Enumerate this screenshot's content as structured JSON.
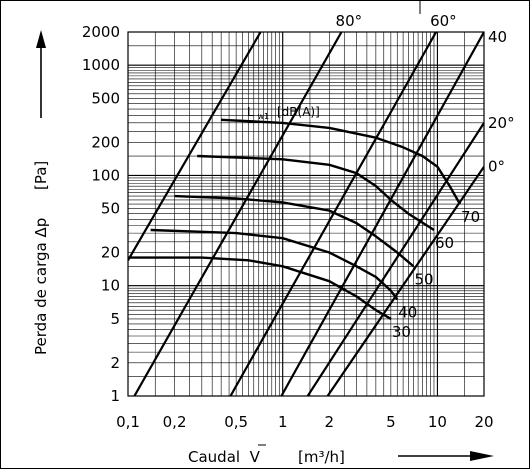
{
  "chart_data": {
    "type": "line",
    "xlabel": "Caudal  V",
    "xunit": "[m³/h]",
    "ylabel": "Perda de carga   Δp",
    "yunit": "[Pa]",
    "xscale": "log",
    "yscale": "log",
    "xlim": [
      0.1,
      20
    ],
    "ylim": [
      1,
      2000
    ],
    "x_ticks": [
      {
        "v": 0.1,
        "label": "0,1"
      },
      {
        "v": 0.2,
        "label": "0,2"
      },
      {
        "v": 0.5,
        "label": "0,5"
      },
      {
        "v": 1,
        "label": "1"
      },
      {
        "v": 2,
        "label": "2"
      },
      {
        "v": 5,
        "label": "5"
      },
      {
        "v": 10,
        "label": "10"
      },
      {
        "v": 20,
        "label": "20"
      }
    ],
    "y_ticks": [
      {
        "v": 1,
        "label": "1"
      },
      {
        "v": 2,
        "label": "2"
      },
      {
        "v": 5,
        "label": "5"
      },
      {
        "v": 10,
        "label": "10"
      },
      {
        "v": 20,
        "label": "20"
      },
      {
        "v": 50,
        "label": "50"
      },
      {
        "v": 100,
        "label": "100"
      },
      {
        "v": 200,
        "label": "200"
      },
      {
        "v": 500,
        "label": "500"
      },
      {
        "v": 1000,
        "label": "1000"
      },
      {
        "v": 2000,
        "label": "2000"
      }
    ],
    "valve_lines": [
      {
        "label": "80°",
        "points": [
          [
            0.11,
            1
          ],
          [
            2.4,
            2000
          ]
        ]
      },
      {
        "label": "60°",
        "points": [
          [
            0.46,
            1
          ],
          [
            9.8,
            2000
          ]
        ]
      },
      {
        "label": "40",
        "points": [
          [
            0.98,
            1
          ],
          [
            20,
            2000
          ]
        ]
      },
      {
        "label": "20°",
        "points": [
          [
            1.45,
            1
          ],
          [
            20,
            300
          ]
        ]
      },
      {
        "label": "0°",
        "points": [
          [
            1.95,
            1
          ],
          [
            20,
            120
          ]
        ]
      },
      {
        "label": "",
        "points": [
          [
            0.1,
            17
          ],
          [
            0.72,
            2000
          ]
        ]
      }
    ],
    "sound_curves": [
      {
        "label": "30",
        "points": [
          [
            0.1,
            18
          ],
          [
            0.3,
            18
          ],
          [
            0.6,
            17
          ],
          [
            1,
            15
          ],
          [
            2,
            11
          ],
          [
            3,
            8
          ],
          [
            4,
            6
          ],
          [
            5,
            5
          ]
        ]
      },
      {
        "label": "40",
        "points": [
          [
            0.14,
            32
          ],
          [
            0.5,
            30
          ],
          [
            1,
            27
          ],
          [
            2,
            20
          ],
          [
            3,
            15
          ],
          [
            4,
            12
          ],
          [
            5,
            9
          ],
          [
            5.5,
            7.5
          ]
        ]
      },
      {
        "label": "50",
        "points": [
          [
            0.2,
            65
          ],
          [
            0.5,
            62
          ],
          [
            1,
            57
          ],
          [
            2,
            48
          ],
          [
            3,
            37
          ],
          [
            4,
            28
          ],
          [
            5.5,
            20
          ],
          [
            7,
            15
          ]
        ]
      },
      {
        "label": "60",
        "points": [
          [
            0.28,
            150
          ],
          [
            1,
            140
          ],
          [
            2,
            125
          ],
          [
            3,
            105
          ],
          [
            4,
            80
          ],
          [
            5,
            60
          ],
          [
            6.5,
            45
          ],
          [
            9.5,
            32
          ]
        ]
      },
      {
        "label": "70",
        "points": [
          [
            0.4,
            320
          ],
          [
            1,
            300
          ],
          [
            2,
            270
          ],
          [
            4,
            220
          ],
          [
            6,
            180
          ],
          [
            8,
            150
          ],
          [
            10,
            120
          ],
          [
            12,
            80
          ],
          [
            14,
            55
          ]
        ]
      }
    ],
    "curve_annotation": {
      "text": "L",
      "sub": "w1",
      "unit": "[dB(A)]"
    },
    "grid": true
  }
}
